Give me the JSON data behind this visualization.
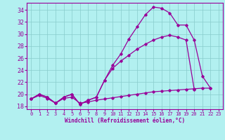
{
  "bg_color": "#b2f0f0",
  "line_color": "#990099",
  "grid_color": "#88cccc",
  "xlim": [
    -0.5,
    23.5
  ],
  "ylim": [
    17.5,
    35.2
  ],
  "yticks": [
    18,
    20,
    22,
    24,
    26,
    28,
    30,
    32,
    34
  ],
  "xticks": [
    0,
    1,
    2,
    3,
    4,
    5,
    6,
    7,
    8,
    9,
    10,
    11,
    12,
    13,
    14,
    15,
    16,
    17,
    18,
    19,
    20,
    21,
    22,
    23
  ],
  "xlabel": "Windchill (Refroidissement éolien,°C)",
  "s0_x": [
    0,
    1,
    2,
    3,
    4,
    5,
    6,
    7,
    8,
    9,
    10,
    11,
    12,
    13,
    14,
    15,
    16,
    17,
    18,
    19,
    20,
    21,
    22
  ],
  "s0_y": [
    19.2,
    20.0,
    19.5,
    18.5,
    19.5,
    20.0,
    18.3,
    19.0,
    19.5,
    22.3,
    24.8,
    26.7,
    29.2,
    31.2,
    33.2,
    34.5,
    34.3,
    33.5,
    31.5,
    31.5,
    29.0,
    23.0,
    21.0
  ],
  "s1_x": [
    0,
    1,
    2,
    3,
    4,
    5,
    6,
    7,
    8,
    9,
    10,
    11,
    12,
    13,
    14,
    15,
    16,
    17,
    18,
    19,
    20
  ],
  "s1_y": [
    19.2,
    20.0,
    19.5,
    18.5,
    19.5,
    20.0,
    18.3,
    19.0,
    19.5,
    22.3,
    24.3,
    25.5,
    26.5,
    27.5,
    28.3,
    29.0,
    29.5,
    29.8,
    29.5,
    29.0,
    20.8
  ],
  "s2_x": [
    0,
    1,
    2,
    3,
    4,
    5,
    6,
    7,
    8,
    9,
    10,
    11,
    12,
    13,
    14,
    15,
    16,
    17,
    18,
    19,
    20,
    21,
    22
  ],
  "s2_y": [
    19.2,
    19.8,
    19.3,
    18.5,
    19.3,
    19.5,
    18.5,
    18.7,
    19.0,
    19.2,
    19.4,
    19.6,
    19.8,
    20.0,
    20.2,
    20.4,
    20.5,
    20.6,
    20.7,
    20.8,
    20.9,
    21.0,
    21.0
  ]
}
